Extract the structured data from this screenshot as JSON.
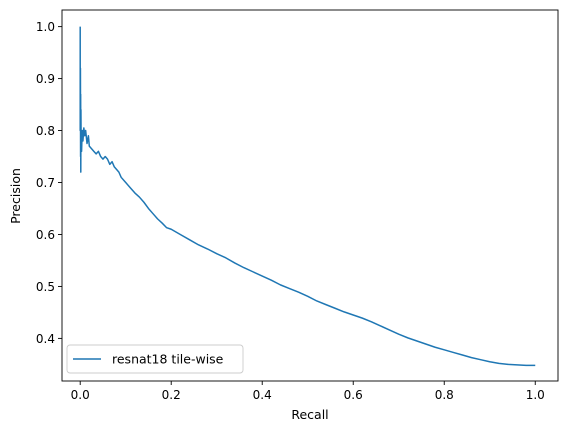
{
  "chart_data": {
    "type": "line",
    "title": "",
    "xlabel": "Recall",
    "ylabel": "Precision",
    "xlim": [
      -0.04,
      1.05
    ],
    "ylim": [
      0.318,
      1.032
    ],
    "grid": false,
    "legend_position": "bottom-left",
    "xticks": [
      0.0,
      0.2,
      0.4,
      0.6,
      0.8,
      1.0
    ],
    "xtick_labels": [
      "0.0",
      "0.2",
      "0.4",
      "0.6",
      "0.8",
      "1.0"
    ],
    "yticks": [
      0.4,
      0.5,
      0.6,
      0.7,
      0.8,
      0.9,
      1.0
    ],
    "ytick_labels": [
      "0.4",
      "0.5",
      "0.6",
      "0.7",
      "0.8",
      "0.9",
      "1.0"
    ],
    "series": [
      {
        "name": "resnat18 tile-wise",
        "color": "#1f77b4",
        "x": [
          0.0,
          0.0,
          0.0005,
          0.0008,
          0.001,
          0.0013,
          0.0016,
          0.002,
          0.0025,
          0.003,
          0.004,
          0.005,
          0.006,
          0.008,
          0.01,
          0.012,
          0.015,
          0.018,
          0.02,
          0.025,
          0.03,
          0.035,
          0.04,
          0.045,
          0.05,
          0.055,
          0.06,
          0.065,
          0.07,
          0.075,
          0.08,
          0.085,
          0.09,
          0.1,
          0.11,
          0.12,
          0.13,
          0.14,
          0.15,
          0.16,
          0.17,
          0.18,
          0.19,
          0.2,
          0.22,
          0.24,
          0.26,
          0.28,
          0.3,
          0.32,
          0.34,
          0.36,
          0.38,
          0.4,
          0.42,
          0.44,
          0.46,
          0.48,
          0.5,
          0.52,
          0.54,
          0.56,
          0.58,
          0.6,
          0.62,
          0.64,
          0.66,
          0.68,
          0.7,
          0.72,
          0.74,
          0.76,
          0.78,
          0.8,
          0.82,
          0.84,
          0.86,
          0.88,
          0.9,
          0.92,
          0.94,
          0.96,
          0.98,
          1.0
        ],
        "y": [
          1.0,
          0.8,
          0.92,
          0.75,
          0.87,
          0.72,
          0.84,
          0.78,
          0.8,
          0.76,
          0.79,
          0.8,
          0.78,
          0.805,
          0.79,
          0.8,
          0.775,
          0.79,
          0.77,
          0.765,
          0.76,
          0.755,
          0.76,
          0.75,
          0.745,
          0.75,
          0.745,
          0.735,
          0.74,
          0.73,
          0.725,
          0.72,
          0.71,
          0.7,
          0.69,
          0.68,
          0.672,
          0.662,
          0.65,
          0.64,
          0.63,
          0.622,
          0.613,
          0.61,
          0.6,
          0.59,
          0.58,
          0.572,
          0.563,
          0.555,
          0.545,
          0.536,
          0.528,
          0.52,
          0.512,
          0.503,
          0.496,
          0.489,
          0.481,
          0.472,
          0.465,
          0.458,
          0.451,
          0.445,
          0.439,
          0.432,
          0.424,
          0.416,
          0.408,
          0.401,
          0.395,
          0.389,
          0.383,
          0.378,
          0.373,
          0.368,
          0.363,
          0.359,
          0.355,
          0.352,
          0.35,
          0.349,
          0.348,
          0.348
        ]
      }
    ]
  }
}
